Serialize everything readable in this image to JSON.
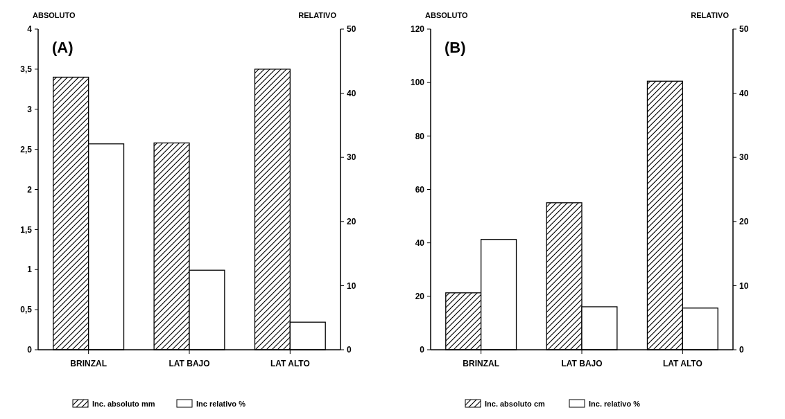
{
  "chart_data": [
    {
      "type": "bar",
      "ylabel": "ABSOLUTO",
      "y2label": "RELATIVO",
      "annotations": [
        "(A)"
      ],
      "categories": [
        "BRINZAL",
        "LAT BAJO",
        "LAT ALTO"
      ],
      "series": [
        {
          "name": "Inc. absoluto mm",
          "color": "#000000",
          "values": [
            3.4,
            2.58,
            3.5
          ]
        },
        {
          "name": "Inc relativo %",
          "color": "#ffffff",
          "axis": "y2",
          "values": [
            32.1,
            12.4,
            4.3
          ]
        }
      ],
      "ylim": [
        0,
        4
      ],
      "yticks": [
        0,
        {
          "value": 0.5,
          "label": "0,5"
        },
        1,
        {
          "value": 1.5,
          "label": "1,5"
        },
        2,
        {
          "value": 2.5,
          "label": "2,5"
        },
        3,
        {
          "value": 3.5,
          "label": "3,5"
        },
        4
      ],
      "y2lim": [
        0,
        50
      ],
      "y2ticks": [
        0,
        10,
        20,
        30,
        40,
        50
      ],
      "legend": "bottom",
      "grid": false
    },
    {
      "type": "bar",
      "ylabel": "ABSOLUTO",
      "y2label": "RELATIVO",
      "annotations": [
        "(B)"
      ],
      "categories": [
        "BRINZAL",
        "LAT BAJO",
        "LAT ALTO"
      ],
      "series": [
        {
          "name": "Inc. absoluto cm",
          "color": "#000000",
          "values": [
            21.3,
            55,
            100.5
          ]
        },
        {
          "name": "Inc. relativo %",
          "color": "#ffffff",
          "axis": "y2",
          "values": [
            17.2,
            6.7,
            6.5
          ]
        }
      ],
      "ylim": [
        0,
        120
      ],
      "yticks": [
        0,
        20,
        40,
        60,
        80,
        100,
        120
      ],
      "y2lim": [
        0,
        50
      ],
      "y2ticks": [
        0,
        10,
        20,
        30,
        40,
        50
      ],
      "legend": "bottom",
      "grid": false
    }
  ]
}
